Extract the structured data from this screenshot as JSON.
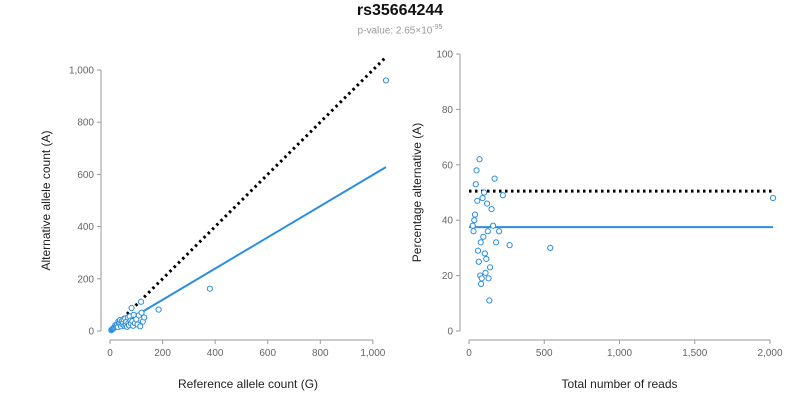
{
  "chart_data": {
    "title": "rs35664244",
    "subtitle": {
      "prefix": "p-value: 2.65×10",
      "exponent": "-95"
    },
    "colors": {
      "points": "#2b8ee0",
      "fit_line": "#2b8ee0",
      "reference_line": "#000000",
      "axis": "#999999",
      "tick_text": "#666666"
    },
    "panels": [
      {
        "type": "scatter",
        "xlabel": "Reference allele count (G)",
        "ylabel": "Alternative allele count (A)",
        "xlim": [
          0,
          1050
        ],
        "ylim": [
          0,
          1000
        ],
        "xticks": [
          0,
          200,
          400,
          600,
          800,
          1000
        ],
        "xtick_labels": [
          "0",
          "200",
          "400",
          "600",
          "800",
          "1,000"
        ],
        "yticks": [
          0,
          200,
          400,
          600,
          800,
          1000
        ],
        "ytick_labels": [
          "0",
          "200",
          "400",
          "600",
          "800",
          "1,000"
        ],
        "points": [
          [
            5,
            3
          ],
          [
            8,
            6
          ],
          [
            10,
            8
          ],
          [
            12,
            10
          ],
          [
            15,
            12
          ],
          [
            18,
            14
          ],
          [
            20,
            22
          ],
          [
            22,
            17
          ],
          [
            25,
            20
          ],
          [
            28,
            26
          ],
          [
            30,
            15
          ],
          [
            32,
            36
          ],
          [
            35,
            30
          ],
          [
            38,
            42
          ],
          [
            40,
            28
          ],
          [
            42,
            18
          ],
          [
            45,
            38
          ],
          [
            48,
            25
          ],
          [
            50,
            33
          ],
          [
            52,
            44
          ],
          [
            55,
            20
          ],
          [
            58,
            48
          ],
          [
            60,
            24
          ],
          [
            62,
            35
          ],
          [
            65,
            16
          ],
          [
            68,
            52
          ],
          [
            70,
            30
          ],
          [
            72,
            22
          ],
          [
            75,
            56
          ],
          [
            78,
            40
          ],
          [
            80,
            28
          ],
          [
            82,
            88
          ],
          [
            85,
            38
          ],
          [
            88,
            20
          ],
          [
            90,
            62
          ],
          [
            95,
            30
          ],
          [
            100,
            45
          ],
          [
            105,
            25
          ],
          [
            110,
            60
          ],
          [
            115,
            18
          ],
          [
            118,
            112
          ],
          [
            120,
            70
          ],
          [
            125,
            36
          ],
          [
            130,
            52
          ],
          [
            185,
            82
          ],
          [
            380,
            162
          ],
          [
            1050,
            960
          ]
        ],
        "reference_line": {
          "from": [
            0,
            0
          ],
          "to": [
            1050,
            1050
          ],
          "style": "dotted"
        },
        "fit_line": {
          "from": [
            0,
            0
          ],
          "to": [
            1050,
            628
          ]
        }
      },
      {
        "type": "scatter",
        "xlabel": "Total number of reads",
        "ylabel": "Percentage alternative (A)",
        "xlim": [
          0,
          2000
        ],
        "ylim": [
          0,
          100
        ],
        "xticks": [
          0,
          500,
          1000,
          1500,
          2000
        ],
        "xtick_labels": [
          "0",
          "500",
          "1,000",
          "1,500",
          "2,000"
        ],
        "yticks": [
          0,
          20,
          40,
          60,
          80,
          100
        ],
        "ytick_labels": [
          "0",
          "20",
          "40",
          "60",
          "80",
          "100"
        ],
        "points": [
          [
            25,
            38
          ],
          [
            30,
            36
          ],
          [
            35,
            40
          ],
          [
            40,
            42
          ],
          [
            45,
            53
          ],
          [
            50,
            58
          ],
          [
            55,
            47
          ],
          [
            60,
            29
          ],
          [
            65,
            25
          ],
          [
            70,
            62
          ],
          [
            75,
            20
          ],
          [
            78,
            32
          ],
          [
            80,
            17
          ],
          [
            85,
            19
          ],
          [
            90,
            48
          ],
          [
            95,
            34
          ],
          [
            100,
            50
          ],
          [
            105,
            28
          ],
          [
            110,
            21
          ],
          [
            115,
            26
          ],
          [
            120,
            46
          ],
          [
            125,
            36
          ],
          [
            130,
            19
          ],
          [
            135,
            11
          ],
          [
            140,
            23
          ],
          [
            150,
            44
          ],
          [
            160,
            38
          ],
          [
            170,
            55
          ],
          [
            180,
            32
          ],
          [
            200,
            36
          ],
          [
            225,
            49
          ],
          [
            270,
            31
          ],
          [
            540,
            30
          ],
          [
            2020,
            48
          ]
        ],
        "reference_line": {
          "from": [
            0,
            50.5
          ],
          "to": [
            2020,
            50.5
          ],
          "style": "dotted"
        },
        "fit_line": {
          "from": [
            0,
            37.5
          ],
          "to": [
            2020,
            37.5
          ]
        }
      }
    ]
  }
}
